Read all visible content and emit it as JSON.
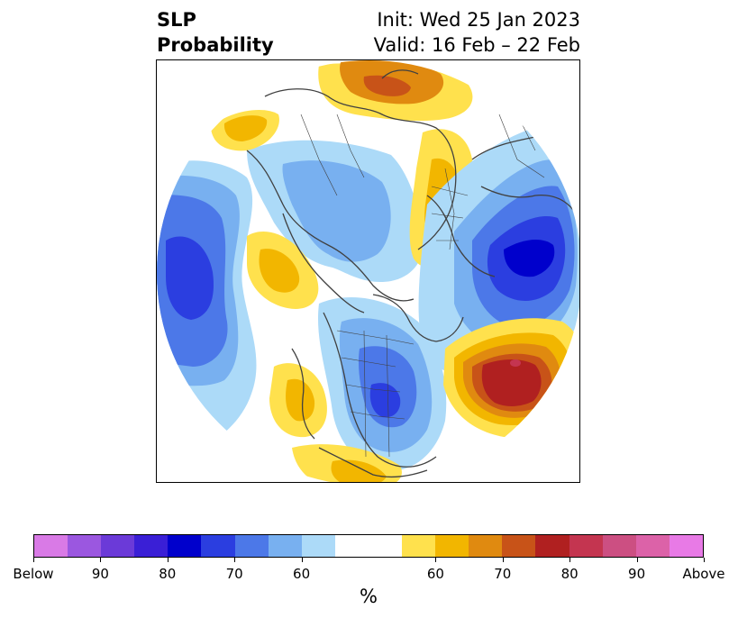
{
  "title": {
    "left_line1": "SLP",
    "left_line2": "Probability",
    "right_line1": "Init: Wed 25 Jan 2023",
    "right_line2": "Valid: 16 Feb – 22 Feb"
  },
  "colorbar": {
    "unit": "%",
    "tick_labels": [
      "Below",
      "90",
      "80",
      "70",
      "60",
      "60",
      "70",
      "80",
      "90",
      "Above"
    ],
    "colors": [
      "#d97ae6",
      "#9b57e0",
      "#6b3ad8",
      "#3a1fd6",
      "#0000cc",
      "#2b3ee0",
      "#4c78e8",
      "#78b0f0",
      "#acdaf8",
      "#ffffff",
      "#ffe14d",
      "#f2b600",
      "#e08a10",
      "#c85318",
      "#b02020",
      "#c43550",
      "#cc4f82",
      "#dc62a8",
      "#e87ae6"
    ]
  },
  "map": {
    "colors": {
      "ocean_blue_light": "#acdaf8",
      "blue_2": "#78b0f0",
      "blue_3": "#4c78e8",
      "blue_4": "#2b3ee0",
      "blue_5": "#0000cc",
      "yellow_1": "#ffe14d",
      "yellow_2": "#f2b600",
      "orange_3": "#e08a10",
      "orange_4": "#c85318",
      "red_5": "#b02020",
      "pink_6": "#c43550",
      "coast": "#404040"
    }
  }
}
